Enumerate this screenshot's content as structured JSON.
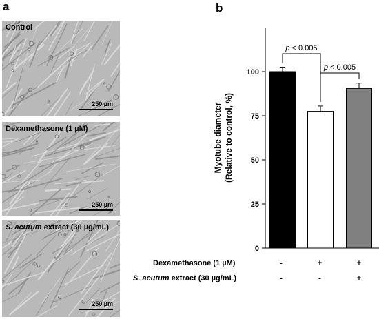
{
  "panels": {
    "a_letter": "a",
    "b_letter": "b"
  },
  "micrographs": [
    {
      "label_plain": "Control",
      "label_italic": "",
      "scale_label": "250 µm"
    },
    {
      "label_plain": "Dexamethasone (1 µM)",
      "label_italic": "",
      "scale_label": "250 µm"
    },
    {
      "label_plain": " extract (30 µg/mL)",
      "label_italic": "S. acutum",
      "scale_label": "250 µm"
    }
  ],
  "chart_data": {
    "type": "bar",
    "categories": [
      "Control",
      "Dexamethasone",
      "Dexamethasone + S. acutum extract"
    ],
    "values": [
      100,
      77.5,
      90.5
    ],
    "errors": [
      2.5,
      3,
      3
    ],
    "bar_colors": [
      "#000000",
      "#ffffff",
      "#808080"
    ],
    "ylabel_line1": "Myotube diameter",
    "ylabel_line2": "(Relative to control, %)",
    "ylim": [
      0,
      125
    ],
    "yticks": [
      "0",
      "25",
      "50",
      "75",
      "100"
    ],
    "significance": [
      {
        "from": 0,
        "to": 1,
        "label": "p < 0.005"
      },
      {
        "from": 1,
        "to": 2,
        "label": "p < 0.005"
      }
    ]
  },
  "treatments": [
    {
      "label_plain": "Dexamethasone (1 µM)",
      "label_italic": "",
      "signs": [
        "-",
        "+",
        "+"
      ]
    },
    {
      "label_plain": " extract (30 µg/mL)",
      "label_italic": "S. acutum",
      "signs": [
        "-",
        "-",
        "+"
      ]
    }
  ]
}
